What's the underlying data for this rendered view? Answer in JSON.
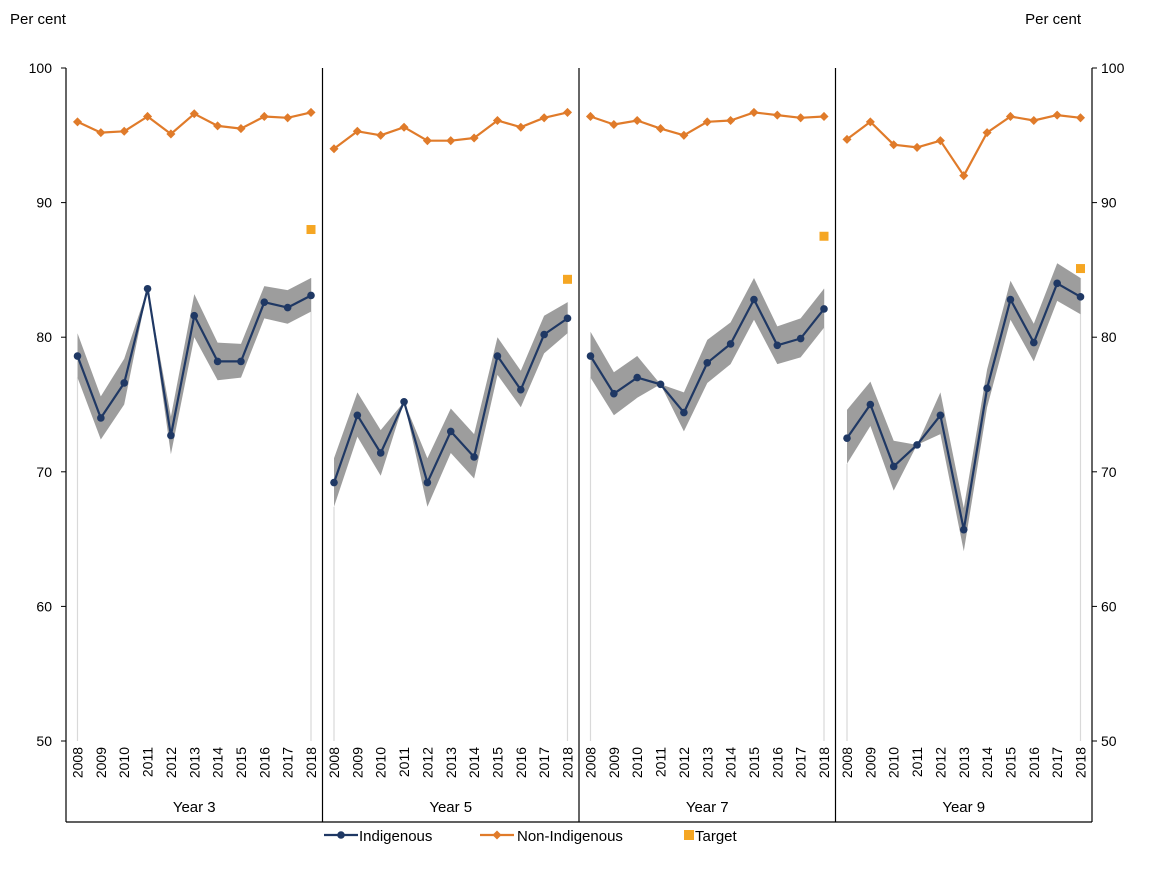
{
  "chart_data": {
    "type": "line",
    "left_axis_label": "Per cent",
    "right_axis_label": "Per cent",
    "ylim": [
      50,
      100
    ],
    "yticks": [
      "50",
      "60",
      "70",
      "80",
      "90",
      "100"
    ],
    "grid": false,
    "years": [
      "2008",
      "2009",
      "2010",
      "2011",
      "2012",
      "2013",
      "2014",
      "2015",
      "2016",
      "2017",
      "2018"
    ],
    "legend_position": "bottom",
    "legend": {
      "indigenous": "Indigenous",
      "non_indigenous": "Non-Indigenous",
      "target": "Target"
    },
    "colors": {
      "indigenous": "#1f3864",
      "non_indigenous": "#e07b2a",
      "target": "#f5a623",
      "band": "#8c8c8c"
    },
    "panels": [
      {
        "label": "Year 3",
        "indigenous": [
          78.6,
          74.0,
          76.6,
          83.6,
          72.7,
          81.6,
          78.2,
          78.2,
          82.6,
          82.2,
          83.1
        ],
        "lower": [
          77.0,
          72.4,
          75.0,
          83.6,
          71.3,
          80.0,
          76.8,
          77.0,
          81.4,
          81.0,
          81.9
        ],
        "upper": [
          80.3,
          75.6,
          78.4,
          83.6,
          74.1,
          83.2,
          79.6,
          79.5,
          83.8,
          83.5,
          84.4
        ],
        "non_indigenous": [
          96.0,
          95.2,
          95.3,
          96.4,
          95.1,
          96.6,
          95.7,
          95.5,
          96.4,
          96.3,
          96.7
        ],
        "target": 88.0
      },
      {
        "label": "Year 5",
        "indigenous": [
          69.2,
          74.2,
          71.4,
          75.2,
          69.2,
          73.0,
          71.1,
          78.6,
          76.1,
          80.2,
          81.4
        ],
        "lower": [
          67.4,
          72.6,
          69.7,
          75.2,
          67.4,
          71.4,
          69.5,
          77.2,
          74.8,
          78.8,
          80.3
        ],
        "upper": [
          71.0,
          75.9,
          73.1,
          75.2,
          71.0,
          74.7,
          72.8,
          80.0,
          77.5,
          81.6,
          82.6
        ],
        "non_indigenous": [
          94.0,
          95.3,
          95.0,
          95.6,
          94.6,
          94.6,
          94.8,
          96.1,
          95.6,
          96.3,
          96.7
        ],
        "target": 84.3
      },
      {
        "label": "Year 7",
        "indigenous": [
          78.6,
          75.8,
          77.0,
          76.5,
          74.4,
          78.1,
          79.5,
          82.8,
          79.4,
          79.9,
          82.1
        ],
        "lower": [
          77.0,
          74.2,
          75.5,
          76.5,
          73.0,
          76.6,
          78.0,
          81.3,
          78.0,
          78.5,
          80.7
        ],
        "upper": [
          80.4,
          77.4,
          78.6,
          76.5,
          75.9,
          79.8,
          81.1,
          84.4,
          80.8,
          81.4,
          83.6
        ],
        "non_indigenous": [
          96.4,
          95.8,
          96.1,
          95.5,
          95.0,
          96.0,
          96.1,
          96.7,
          96.5,
          96.3,
          96.4
        ],
        "target": 87.5
      },
      {
        "label": "Year 9",
        "indigenous": [
          72.5,
          75.0,
          70.4,
          72.0,
          74.2,
          65.7,
          76.2,
          82.8,
          79.6,
          84.0,
          83.0
        ],
        "lower": [
          70.6,
          73.4,
          68.6,
          72.0,
          72.8,
          64.1,
          74.8,
          81.3,
          78.2,
          82.7,
          81.7
        ],
        "upper": [
          74.6,
          76.7,
          72.3,
          72.0,
          75.9,
          67.3,
          77.6,
          84.2,
          81.0,
          85.5,
          84.4
        ],
        "non_indigenous": [
          94.7,
          96.0,
          94.3,
          94.1,
          94.6,
          92.0,
          95.2,
          96.4,
          96.1,
          96.5,
          96.3
        ],
        "target": 85.1
      }
    ]
  }
}
